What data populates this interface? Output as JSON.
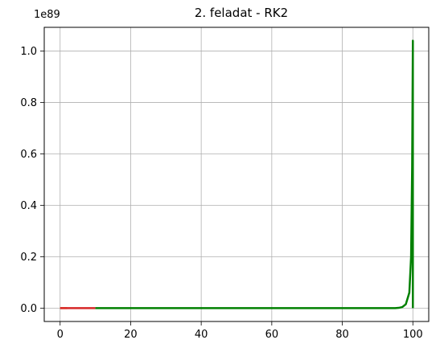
{
  "chart_data": {
    "type": "line",
    "title": "2. feladat - RK2",
    "xlabel": "",
    "ylabel": "",
    "y_offset_label": "1e89",
    "xlim": [
      -4.5,
      104.5
    ],
    "ylim": [
      -0.052,
      1.092
    ],
    "x_ticks": [
      0,
      20,
      40,
      60,
      80,
      100
    ],
    "x_tick_labels": [
      "0",
      "20",
      "40",
      "60",
      "80",
      "100"
    ],
    "y_ticks": [
      0.0,
      0.2,
      0.4,
      0.6,
      0.8,
      1.0
    ],
    "y_tick_labels": [
      "0.0",
      "0.2",
      "0.4",
      "0.6",
      "0.8",
      "1.0"
    ],
    "grid": true,
    "legend": "none",
    "series": [
      {
        "color": "#ff7f0e",
        "x": [
          0,
          2
        ],
        "y": [
          0,
          0
        ]
      },
      {
        "color": "#d62728",
        "x": [
          0,
          10
        ],
        "y": [
          0,
          0
        ]
      },
      {
        "color": "#008000",
        "x": [
          10,
          40,
          80,
          95,
          96,
          97,
          98,
          99,
          99.5,
          99.8,
          100,
          100
        ],
        "y": [
          0,
          0,
          0,
          0,
          0.001,
          0.004,
          0.015,
          0.06,
          0.2,
          0.55,
          1.04,
          0
        ]
      }
    ]
  }
}
